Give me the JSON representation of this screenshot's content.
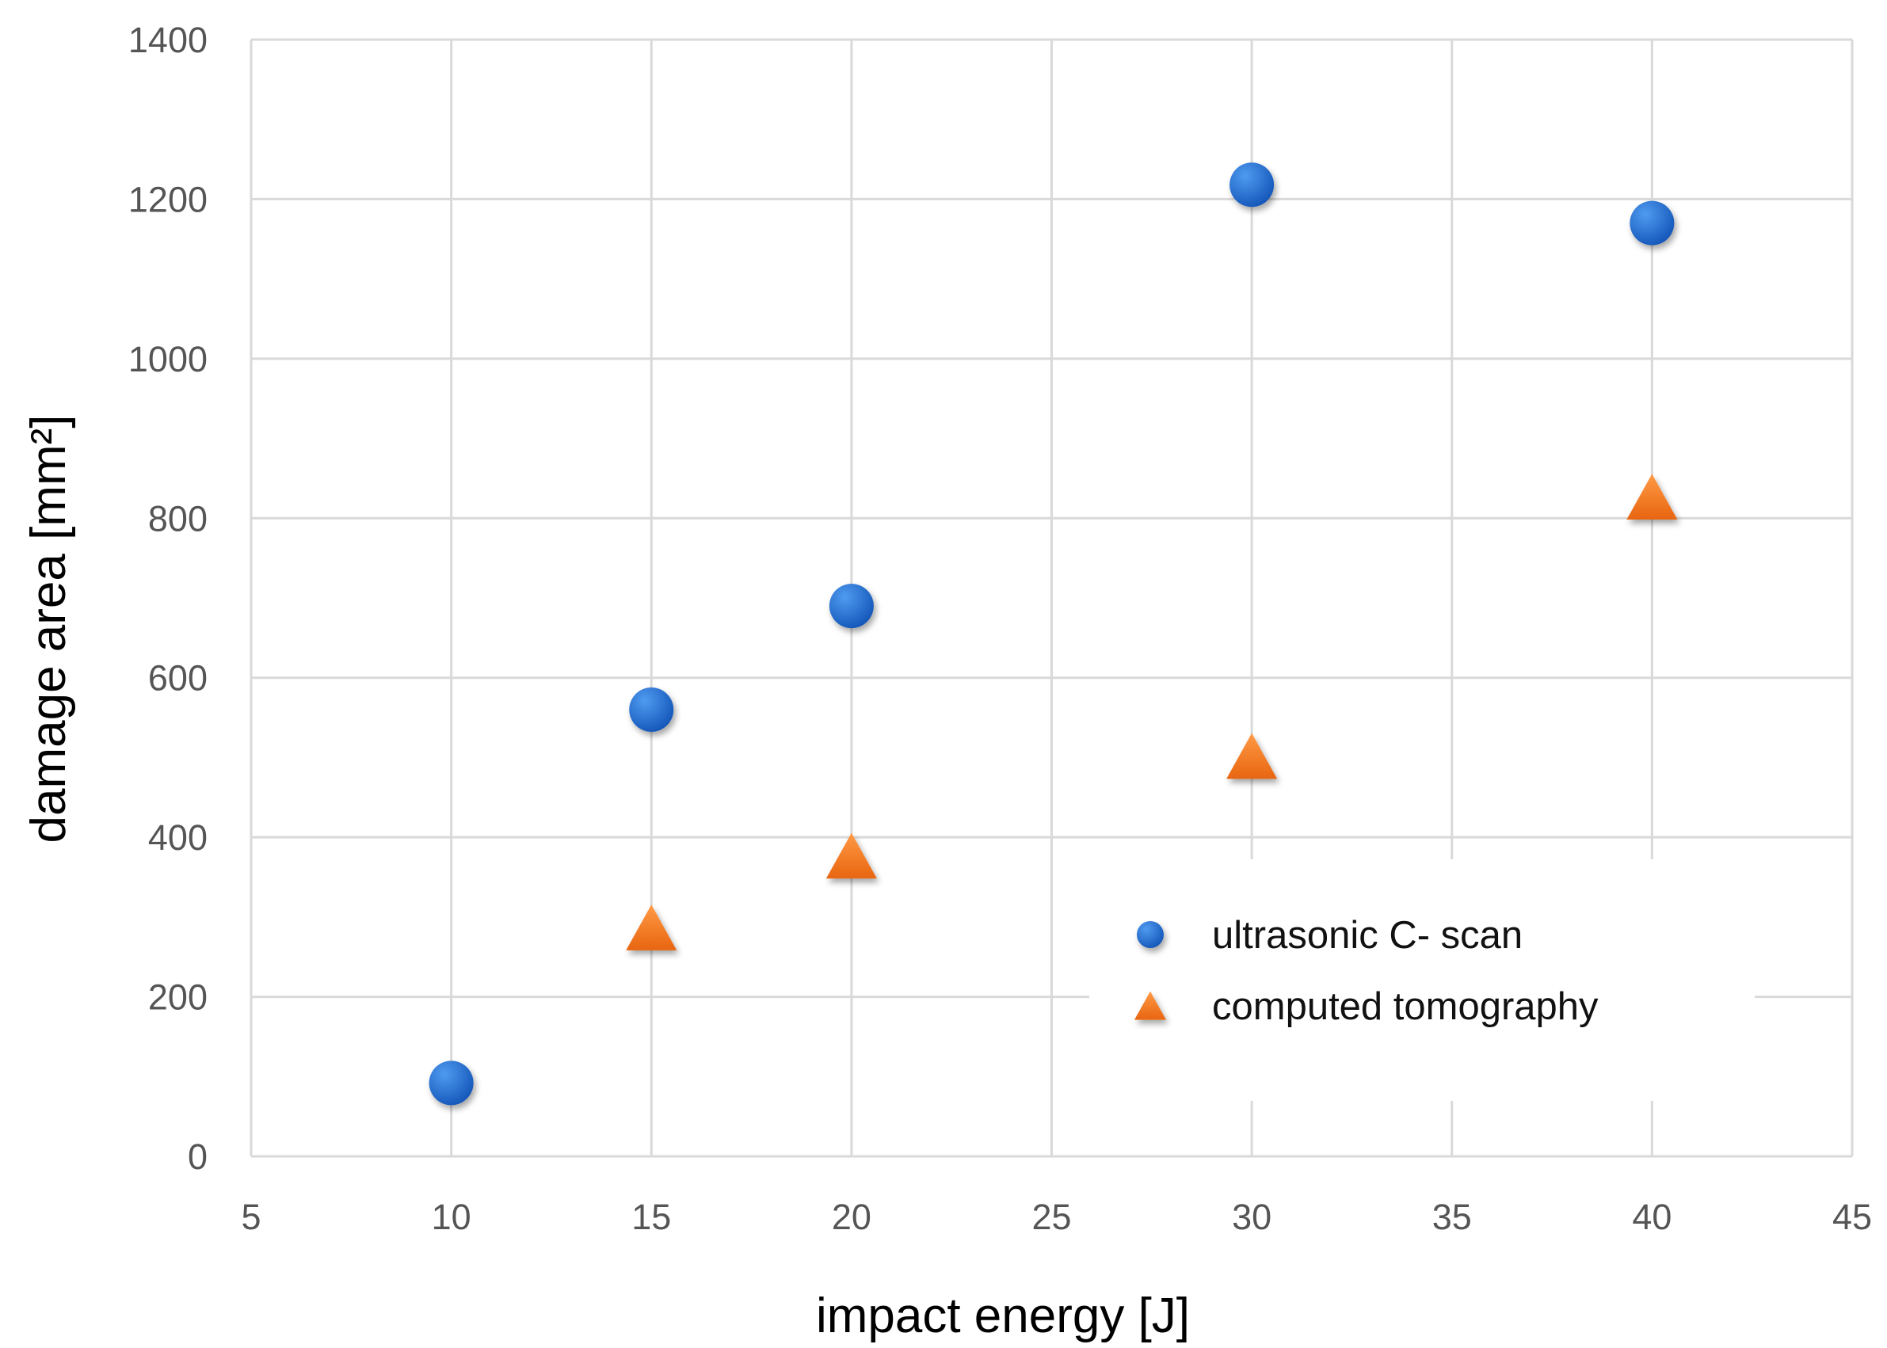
{
  "chart_data": {
    "type": "scatter",
    "title": "",
    "xlabel": "impact energy [J]",
    "ylabel": "damage area [mm²]",
    "xlim": [
      5,
      45
    ],
    "ylim": [
      0,
      1400
    ],
    "xticks": [
      5,
      10,
      15,
      20,
      25,
      30,
      35,
      40,
      45
    ],
    "yticks": [
      0,
      200,
      400,
      600,
      800,
      1000,
      1200,
      1400
    ],
    "grid": true,
    "legend_position": "lower-right",
    "series": [
      {
        "name": "ultrasonic C- scan",
        "marker": "circle",
        "color": "#1f6fd1",
        "points": [
          {
            "x": 10,
            "y": 92
          },
          {
            "x": 15,
            "y": 560
          },
          {
            "x": 20,
            "y": 690
          },
          {
            "x": 30,
            "y": 1218
          },
          {
            "x": 40,
            "y": 1170
          }
        ]
      },
      {
        "name": "computed tomography",
        "marker": "triangle",
        "color": "#f47a20",
        "points": [
          {
            "x": 15,
            "y": 280
          },
          {
            "x": 20,
            "y": 370
          },
          {
            "x": 30,
            "y": 495
          },
          {
            "x": 40,
            "y": 820
          }
        ]
      }
    ]
  }
}
